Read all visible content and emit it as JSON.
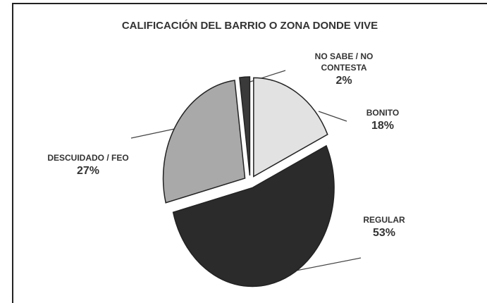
{
  "chart_data": {
    "type": "pie",
    "title": "CALIFICACIÓN DEL BARRIO O ZONA DONDE VIVE",
    "categories": [
      "BONITO",
      "REGULAR",
      "DESCUIDADO / FEO",
      "NO SABE / NO CONTESTA"
    ],
    "values": [
      18,
      53,
      27,
      2
    ],
    "value_labels": [
      "18%",
      "53%",
      "27%",
      "2%"
    ],
    "colors": [
      "#e2e2e2",
      "#2b2b2b",
      "#a9a9a9",
      "#3a3a3a"
    ]
  }
}
